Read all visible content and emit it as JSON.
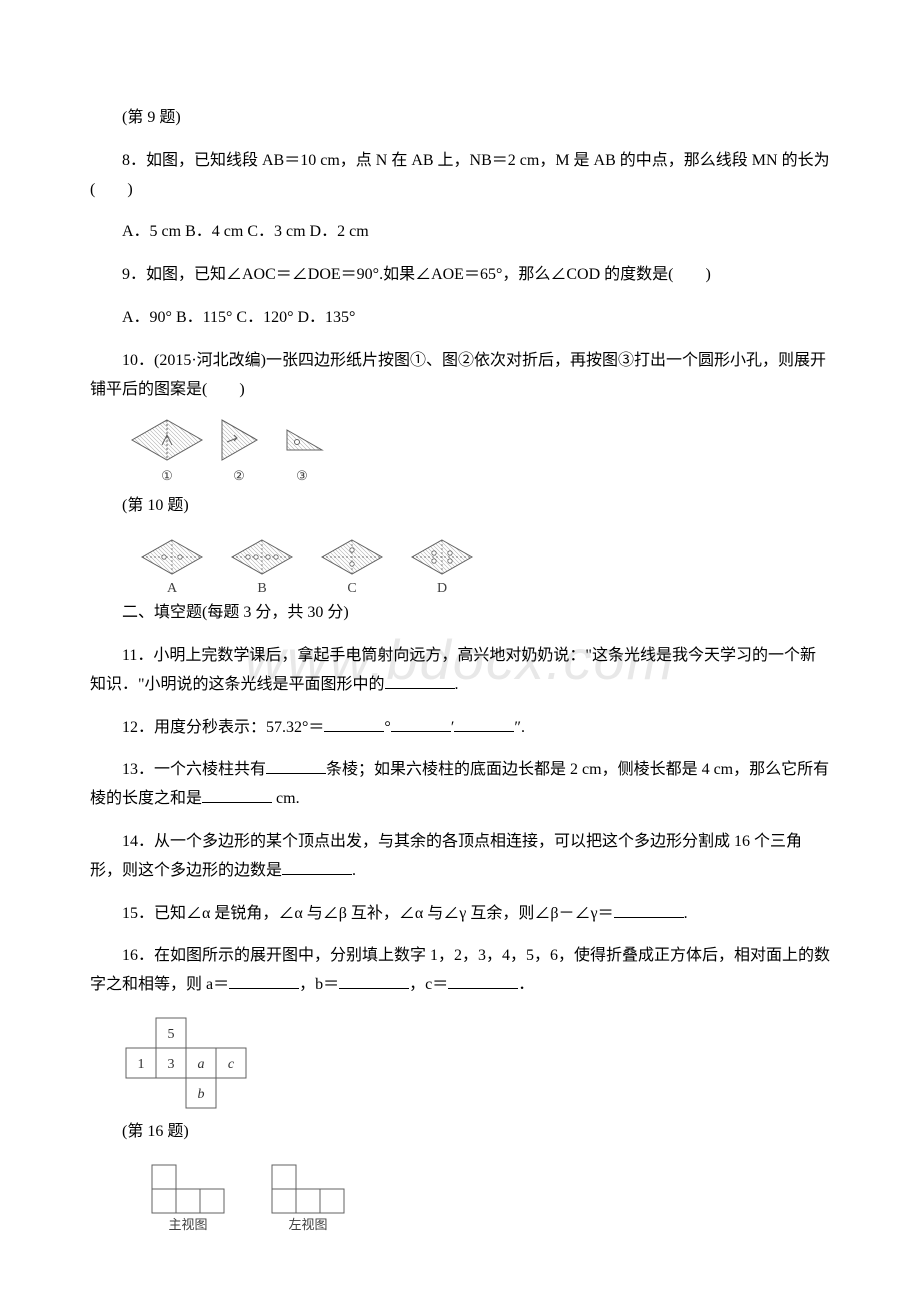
{
  "watermark": "www.bdocx.com",
  "captions": {
    "q9fig": "(第 9 题)",
    "q10fig": "(第 10 题)",
    "q16fig": "(第 16 题)"
  },
  "q8": {
    "text": "8．如图，已知线段 AB＝10 cm，点 N 在 AB 上，NB＝2 cm，M 是 AB 的中点，那么线段 MN 的长为(　　)",
    "opts": "A．5 cm B．4 cm C．3 cm D．2 cm"
  },
  "q9": {
    "text": "9．如图，已知∠AOC＝∠DOE＝90°.如果∠AOE＝65°，那么∠COD 的度数是(　　)",
    "opts": "A．90° B．115° C．120° D．135°"
  },
  "q10": {
    "text": "10．(2015·河北改编)一张四边形纸片按图①、图②依次对折后，再按图③打出一个圆形小孔，则展开铺平后的图案是(　　)",
    "fig": {
      "labels": [
        "①",
        "②",
        "③"
      ],
      "optLabels": [
        "A",
        "B",
        "C",
        "D"
      ],
      "hatch": "#b0b0b0",
      "outline": "#606060",
      "textColor": "#404040"
    }
  },
  "sectionII": "二、填空题(每题 3 分，共 30 分)",
  "q11": {
    "pre": "11．小明上完数学课后，拿起手电筒射向远方，高兴地对奶奶说：\"这条光线是我今天学习的一个新知识．\"小明说的这条光线是平面图形中的",
    "post": "."
  },
  "q12": {
    "pre": "12．用度分秒表示：57.32°＝",
    "deg": "°",
    "min": "′",
    "sec": "″."
  },
  "q13": {
    "pre": "13．一个六棱柱共有",
    "mid": "条棱；如果六棱柱的底面边长都是 2 cm，侧棱长都是 4 cm，那么它所有棱的长度之和是",
    "post": " cm."
  },
  "q14": {
    "pre": "14．从一个多边形的某个顶点出发，与其余的各顶点相连接，可以把这个多边形分割成 16 个三角形，则这个多边形的边数是",
    "post": "."
  },
  "q15": {
    "pre": "15．已知∠α 是锐角，∠α 与∠β 互补，∠α 与∠γ 互余，则∠β－∠γ＝",
    "post": "."
  },
  "q16": {
    "pre": "16．在如图所示的展开图中，分别填上数字 1，2，3，4，5，6，使得折叠成正方体后，相对面上的数字之和相等，则 a＝",
    "mid1": "，b＝",
    "mid2": "，c＝",
    "post": "．",
    "net": {
      "cells": [
        {
          "r": 0,
          "c": 1,
          "t": "5"
        },
        {
          "r": 1,
          "c": 0,
          "t": "1"
        },
        {
          "r": 1,
          "c": 1,
          "t": "3"
        },
        {
          "r": 1,
          "c": 2,
          "t": "a",
          "it": true
        },
        {
          "r": 1,
          "c": 3,
          "t": "c",
          "it": true
        },
        {
          "r": 2,
          "c": 2,
          "t": "b",
          "it": true
        }
      ],
      "cellSize": 30,
      "border": "#606060",
      "textColor": "#303030"
    }
  },
  "q17": {
    "views": {
      "cellSize": 24,
      "border": "#606060",
      "textColor": "#404040",
      "front": {
        "cols": 3,
        "heights": [
          2,
          1,
          1
        ],
        "label": "主视图"
      },
      "left": {
        "cols": 3,
        "heights": [
          2,
          1,
          1
        ],
        "label": "左视图"
      }
    }
  }
}
